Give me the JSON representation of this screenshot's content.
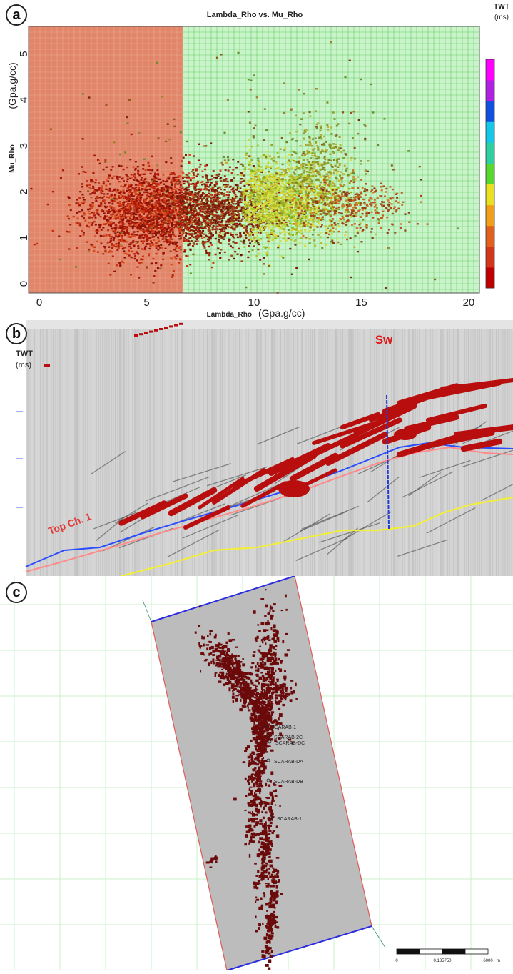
{
  "panel_labels": {
    "a": "a",
    "b": "b",
    "c": "c"
  },
  "chart_data": [
    {
      "type": "scatter",
      "title": "Lambda_Rho vs. Mu_Rho",
      "xlabel_small": "Lambda_Rho",
      "xlabel_big": "(Gpa.g/cc)",
      "ylabel_small": "Mu_Rho",
      "ylabel_big": "(Gpa.g/cc)",
      "xlim": [
        -0.5,
        20.5
      ],
      "ylim": [
        -0.2,
        5.6
      ],
      "xticks": [
        0,
        5,
        10,
        15,
        20
      ],
      "yticks": [
        0,
        1,
        2,
        3,
        4,
        5
      ],
      "cutoff_x": 6.7,
      "grid": true,
      "region_colors": {
        "left": "#e2866a",
        "right": "#c9f3c9",
        "grid_line": "#3fbf3f"
      },
      "clusters": [
        {
          "cx": 5.2,
          "cy": 1.55,
          "sx": 1.6,
          "sy": 0.45,
          "n": 2200,
          "color_scheme": "red"
        },
        {
          "cx": 8.4,
          "cy": 1.55,
          "sx": 1.4,
          "sy": 0.4,
          "n": 1100,
          "color_scheme": "darkred"
        },
        {
          "cx": 11.2,
          "cy": 1.8,
          "sx": 1.4,
          "sy": 0.42,
          "n": 1600,
          "color_scheme": "yellowgreen"
        },
        {
          "cx": 13.0,
          "cy": 2.4,
          "sx": 0.9,
          "sy": 0.55,
          "n": 450,
          "color_scheme": "olive"
        },
        {
          "cx": 14.5,
          "cy": 1.7,
          "sx": 1.3,
          "sy": 0.3,
          "n": 350,
          "color_scheme": "orange"
        },
        {
          "cx": 10.0,
          "cy": 2.5,
          "sx": 4.5,
          "sy": 1.2,
          "n": 220,
          "color_scheme": "mixed"
        }
      ],
      "colorbar": {
        "title": "TWT",
        "unit": "(ms)",
        "colors": [
          "#c00000",
          "#d4361a",
          "#e2601e",
          "#f0a018",
          "#e8e020",
          "#58d82e",
          "#2ed0a0",
          "#16c8e8",
          "#1050e0",
          "#b020e0",
          "#ff00ff"
        ]
      }
    }
  ],
  "section": {
    "label": "Sw",
    "twt_title": "TWT",
    "twt_unit": "(ms)",
    "horizon_label": "Top Ch. 1",
    "colors": {
      "body": "#b80e0e",
      "blue": "#2a4cff",
      "yellow": "#f2ee3a",
      "pink": "#ff8a8a",
      "well": "#1f3bd8"
    }
  },
  "map": {
    "wells": [
      "SCARAB-1",
      "SCARAB-2C",
      "SCARAB-DC",
      "SCARAB-DA",
      "SCARAB-DB",
      "SCARAB-1"
    ],
    "scale_labels": [
      "0",
      "0.135750",
      "6000",
      "m"
    ],
    "colors": {
      "slab": "#bcbcbc",
      "bodies": "#6b0a0a",
      "grid": "#c9f0c9",
      "edge_blue": "#2a2ae0",
      "edge_red": "#e05a5a"
    }
  }
}
